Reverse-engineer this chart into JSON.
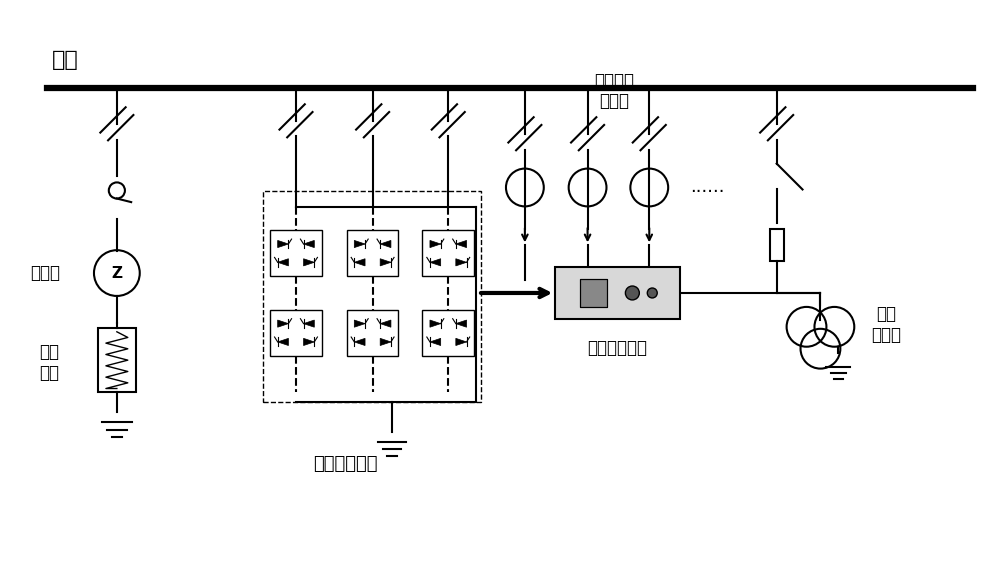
{
  "bg_color": "#ffffff",
  "line_color": "#000000",
  "labels": {
    "busbar": "母线",
    "grounding_transformer": "接地变",
    "arc_coil": "消弧\n线圈",
    "multilevel_converter": "多电平变换器",
    "zero_seq_ct": "零序电流\n互感器",
    "arc_control": "消弧控制装置",
    "voltage_transformer": "电压\n互感器",
    "dots": "......"
  },
  "figsize": [
    10.0,
    5.75
  ],
  "dpi": 100
}
